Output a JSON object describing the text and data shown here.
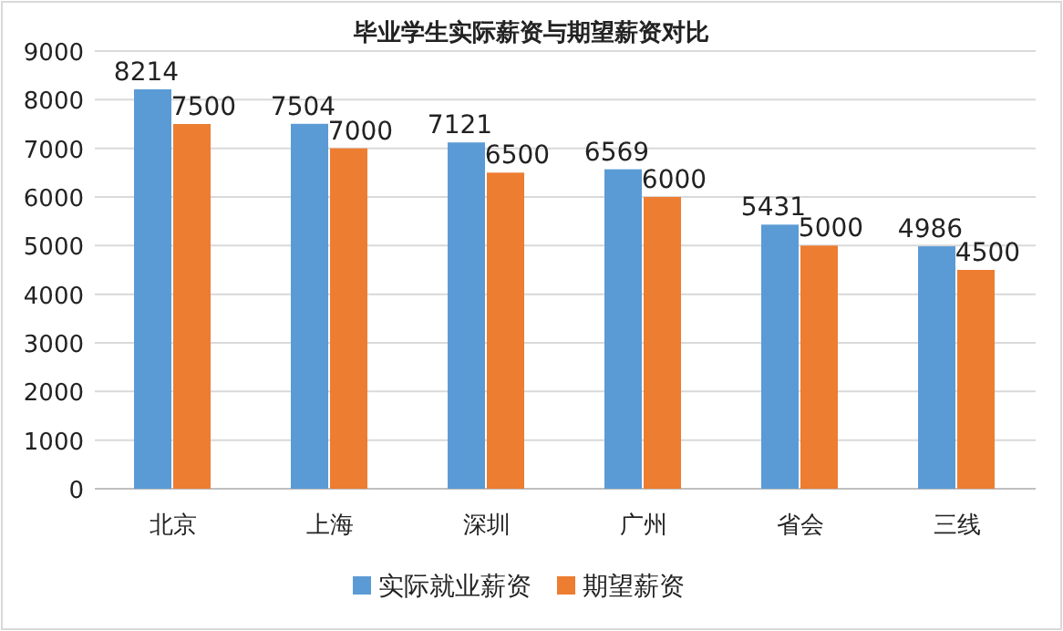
{
  "chart_data": {
    "type": "bar",
    "title": "毕业学生实际薪资与期望薪资对比",
    "categories": [
      "北京",
      "上海",
      "深圳",
      "广州",
      "省会",
      "三线"
    ],
    "series": [
      {
        "name": "实际就业薪资",
        "color": "#5b9bd5",
        "values": [
          8214,
          7504,
          7121,
          6569,
          5431,
          4986
        ]
      },
      {
        "name": "期望薪资",
        "color": "#ed7d31",
        "values": [
          7500,
          7000,
          6500,
          6000,
          5000,
          4500
        ]
      }
    ],
    "ylim": [
      0,
      9000
    ],
    "yticks": [
      0,
      1000,
      2000,
      3000,
      4000,
      5000,
      6000,
      7000,
      8000,
      9000
    ],
    "grid": "y",
    "legend": "bottom",
    "data_labels": true
  }
}
